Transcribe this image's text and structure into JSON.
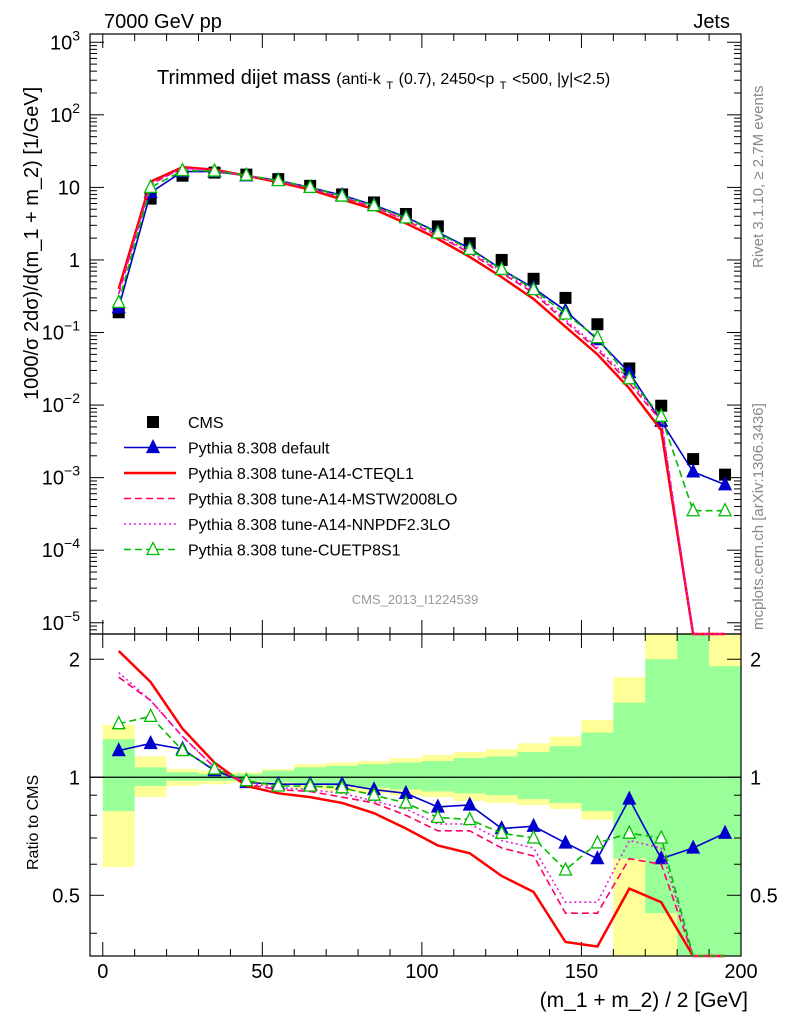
{
  "header": {
    "left_label": "7000 GeV pp",
    "right_label": "Jets"
  },
  "side_labels": {
    "rivet": "Rivet 3.1.10, ≥ 2.7M events",
    "mcplots": "mcplots.cern.ch [arXiv:1306.3436]"
  },
  "chart_data": [
    {
      "type": "scatter",
      "panel": "main",
      "title": "Trimmed dijet mass",
      "subtitle_parts": [
        "(anti-k",
        "T",
        "(0.7), 2450<p",
        "T",
        "<500, |y|<2.5)"
      ],
      "ylabel": "1000/σ 2dσ)/d(m_1 + m_2) [1/GeV]",
      "xlabel": "",
      "watermark": "CMS_2013_I1224539",
      "xlim": [
        -4,
        200
      ],
      "ylim": [
        7e-06,
        1300
      ],
      "yscale": "log",
      "ytick_labels": [
        {
          "base": "10",
          "exp": "−5",
          "value": 1e-05
        },
        {
          "base": "10",
          "exp": "−4",
          "value": 0.0001
        },
        {
          "base": "10",
          "exp": "−3",
          "value": 0.001
        },
        {
          "base": "10",
          "exp": "−2",
          "value": 0.01
        },
        {
          "base": "10",
          "exp": "−1",
          "value": 0.1
        },
        {
          "base": "1",
          "exp": "",
          "value": 1
        },
        {
          "base": "10",
          "exp": "",
          "value": 10
        },
        {
          "base": "10",
          "exp": "2",
          "value": 100
        },
        {
          "base": "10",
          "exp": "3",
          "value": 1000
        }
      ],
      "x": [
        5,
        15,
        25,
        35,
        45,
        55,
        65,
        75,
        85,
        95,
        105,
        115,
        125,
        135,
        145,
        155,
        165,
        175,
        185,
        195
      ],
      "legend_position": "lower-left",
      "series": [
        {
          "name": "CMS",
          "color": "#000000",
          "marker": "square",
          "line": "none",
          "values": [
            0.19,
            7,
            14.5,
            16,
            15,
            13,
            10.5,
            8,
            6.2,
            4.3,
            2.9,
            1.7,
            1.0,
            0.55,
            0.3,
            0.13,
            0.032,
            0.0098,
            0.0018,
            0.0011
          ]
        },
        {
          "name": "Pythia 8.308 default",
          "color": "#0000cc",
          "marker": "triangle-filled",
          "line": "solid",
          "values": [
            0.22,
            8.5,
            16.5,
            16.5,
            14.5,
            12.5,
            10,
            7.8,
            5.7,
            3.9,
            2.4,
            1.45,
            0.74,
            0.41,
            0.2,
            0.08,
            0.028,
            0.006,
            0.0012,
            0.0008
          ]
        },
        {
          "name": "Pythia 8.308 tune-A14-CTEQL1",
          "color": "#ff0000",
          "marker": "none",
          "line": "solid",
          "values": [
            0.4,
            12,
            19,
            17.5,
            14.5,
            11.8,
            9.3,
            6.8,
            5.0,
            3.2,
            1.95,
            1.1,
            0.58,
            0.29,
            0.12,
            0.05,
            0.017,
            0.0045,
            0.0,
            0.0
          ]
        },
        {
          "name": "Pythia 8.308 tune-A14-MSTW2008LO",
          "color": "#ff0066",
          "marker": "none",
          "line": "dashed",
          "values": [
            0.34,
            11,
            18.5,
            17,
            14.5,
            12,
            9.6,
            7.2,
            5.4,
            3.5,
            2.15,
            1.25,
            0.66,
            0.35,
            0.14,
            0.058,
            0.02,
            0.006,
            0.0,
            0.0
          ]
        },
        {
          "name": "Pythia 8.308 tune-A14-NNPDF2.3LO",
          "color": "#e020e0",
          "marker": "none",
          "line": "dotted",
          "values": [
            0.35,
            11,
            18.5,
            17,
            14.5,
            12.2,
            9.8,
            7.4,
            5.5,
            3.6,
            2.2,
            1.3,
            0.7,
            0.37,
            0.15,
            0.062,
            0.022,
            0.0065,
            0.0,
            0.0
          ]
        },
        {
          "name": "Pythia 8.308 tune-CUETP8S1",
          "color": "#00bb00",
          "marker": "triangle-open",
          "line": "dashed",
          "values": [
            0.26,
            10,
            17,
            16.8,
            14.7,
            12.4,
            10,
            7.6,
            5.6,
            3.8,
            2.35,
            1.4,
            0.74,
            0.39,
            0.18,
            0.085,
            0.023,
            0.007,
            0.00035,
            0.00035
          ]
        }
      ]
    },
    {
      "type": "line",
      "panel": "ratio",
      "ylabel": "Ratio to CMS",
      "xlabel": "(m_1 + m_2) / 2 [GeV]",
      "xlim": [
        -4,
        200
      ],
      "ylim": [
        0.35,
        2.32
      ],
      "yscale": "log",
      "ytick_labels": [
        "0.5",
        "1",
        "2"
      ],
      "xtick_labels": [
        "0",
        "50",
        "100",
        "150",
        "200"
      ],
      "x": [
        5,
        15,
        25,
        35,
        45,
        55,
        65,
        75,
        85,
        95,
        105,
        115,
        125,
        135,
        145,
        155,
        165,
        175,
        185,
        195
      ],
      "bin_edges": [
        0,
        10,
        20,
        30,
        40,
        50,
        60,
        70,
        80,
        90,
        100,
        110,
        120,
        130,
        140,
        150,
        160,
        170,
        180,
        190,
        200
      ],
      "band_outer": {
        "color": "#ffff99",
        "low": [
          0.59,
          0.89,
          0.95,
          0.96,
          0.97,
          0.95,
          0.93,
          0.92,
          0.91,
          0.9,
          0.89,
          0.87,
          0.86,
          0.85,
          0.83,
          0.78,
          0.35,
          0.35,
          0.35,
          0.35
        ],
        "high": [
          1.36,
          1.13,
          1.05,
          1.04,
          1.03,
          1.05,
          1.08,
          1.09,
          1.1,
          1.12,
          1.14,
          1.16,
          1.18,
          1.22,
          1.27,
          1.4,
          1.8,
          2.32,
          2.32,
          2.32
        ]
      },
      "band_inner": {
        "color": "#99ff99",
        "low": [
          0.82,
          0.95,
          0.98,
          0.98,
          0.98,
          0.97,
          0.96,
          0.95,
          0.94,
          0.93,
          0.92,
          0.91,
          0.9,
          0.88,
          0.86,
          0.82,
          0.62,
          0.45,
          0.35,
          0.35
        ],
        "high": [
          1.25,
          1.06,
          1.03,
          1.02,
          1.02,
          1.04,
          1.06,
          1.07,
          1.08,
          1.09,
          1.1,
          1.12,
          1.13,
          1.16,
          1.2,
          1.3,
          1.55,
          2.0,
          2.32,
          1.92
        ]
      },
      "series": [
        {
          "name": "Pythia 8.308 default",
          "color": "#0000cc",
          "marker": "triangle-filled",
          "line": "solid",
          "values": [
            1.17,
            1.22,
            1.18,
            1.04,
            0.97,
            0.96,
            0.96,
            0.96,
            0.93,
            0.91,
            0.84,
            0.85,
            0.74,
            0.75,
            0.68,
            0.62,
            0.88,
            0.62,
            0.66,
            0.72
          ]
        },
        {
          "name": "Pythia 8.308 tune-A14-CTEQL1",
          "color": "#ff0000",
          "marker": "none",
          "line": "solid",
          "values": [
            2.1,
            1.75,
            1.33,
            1.09,
            0.95,
            0.91,
            0.89,
            0.86,
            0.81,
            0.74,
            0.67,
            0.64,
            0.56,
            0.51,
            0.38,
            0.37,
            0.52,
            0.48,
            0.0,
            0.0
          ]
        },
        {
          "name": "Pythia 8.308 tune-A14-MSTW2008LO",
          "color": "#ff0066",
          "marker": "none",
          "line": "dashed",
          "values": [
            1.8,
            1.57,
            1.27,
            1.06,
            0.96,
            0.93,
            0.92,
            0.89,
            0.86,
            0.8,
            0.73,
            0.73,
            0.66,
            0.63,
            0.45,
            0.45,
            0.62,
            0.6,
            0.0,
            0.0
          ]
        },
        {
          "name": "Pythia 8.308 tune-A14-NNPDF2.3LO",
          "color": "#e020e0",
          "marker": "none",
          "line": "dotted",
          "values": [
            1.85,
            1.57,
            1.27,
            1.06,
            0.97,
            0.94,
            0.93,
            0.91,
            0.87,
            0.83,
            0.76,
            0.76,
            0.69,
            0.66,
            0.48,
            0.48,
            0.69,
            0.66,
            0.0,
            0.0
          ]
        },
        {
          "name": "Pythia 8.308 tune-CUETP8S1",
          "color": "#00bb00",
          "marker": "triangle-open",
          "line": "dashed",
          "values": [
            1.37,
            1.43,
            1.17,
            1.05,
            0.98,
            0.95,
            0.95,
            0.94,
            0.9,
            0.86,
            0.79,
            0.78,
            0.72,
            0.7,
            0.58,
            0.68,
            0.72,
            0.7,
            0.0,
            0.0
          ]
        }
      ]
    }
  ]
}
